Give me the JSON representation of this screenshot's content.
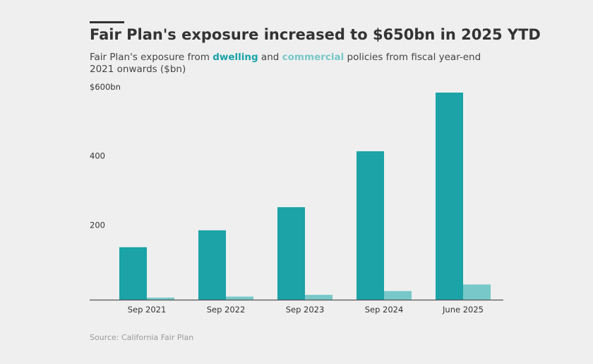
{
  "header": {
    "title": "Fair Plan's exposure increased to $650bn in 2025 YTD",
    "subtitle_before": "Fair Plan's exposure from ",
    "subtitle_dwelling": "dwelling",
    "subtitle_and": " and ",
    "subtitle_commercial": "commercial",
    "subtitle_after": " policies from fiscal year-end 2021 onwards ($bn)"
  },
  "colors": {
    "dwelling": "#1ba3a7",
    "commercial": "#78c8c9",
    "background": "#efefef",
    "axis": "#555555"
  },
  "chart_data": {
    "type": "bar",
    "title": "Fair Plan's exposure increased to $650bn in 2025 YTD",
    "ylabel": "$bn",
    "xlabel": "",
    "categories": [
      "Sep 2021",
      "Sep 2022",
      "Sep 2023",
      "Sep 2024",
      "June 2025"
    ],
    "series": [
      {
        "name": "dwelling",
        "values": [
          152,
          201,
          268,
          430,
          600
        ]
      },
      {
        "name": "commercial",
        "values": [
          6,
          9,
          14,
          25,
          44
        ]
      }
    ],
    "ylim": [
      0,
      600
    ],
    "yticks": [
      {
        "value": 600,
        "label": "$600bn"
      },
      {
        "value": 400,
        "label": "400"
      },
      {
        "value": 200,
        "label": "200"
      }
    ],
    "grid": false,
    "legend": "inline in subtitle"
  },
  "footer": {
    "source": "Source: California Fair Plan"
  }
}
